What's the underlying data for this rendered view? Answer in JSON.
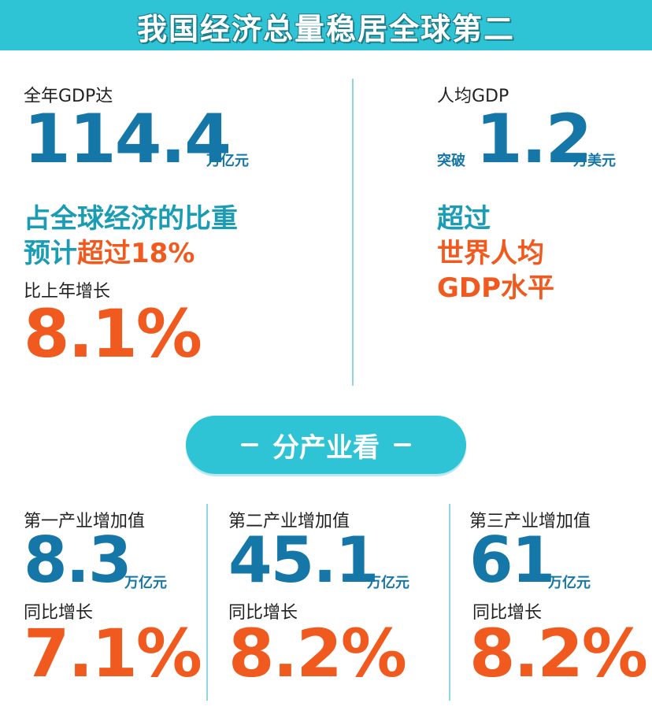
{
  "banner": {
    "title": "我国经济总量稳居全球第二"
  },
  "gdp": {
    "label": "全年GDP达",
    "value": "114.4",
    "unit": "万亿元",
    "share_line1": "占全球经济的比重",
    "share_prefix": "预计",
    "share_highlight": "超过18%",
    "growth_label": "比上年增长",
    "growth_value": "8.1%"
  },
  "per_capita": {
    "label": "人均GDP",
    "prefix": "突破",
    "value": "1.2",
    "unit": "万美元",
    "exceed_label": "超过",
    "exceed_line1": "世界人均",
    "exceed_line2": "GDP水平"
  },
  "section": {
    "title": "分产业看"
  },
  "industries": [
    {
      "label": "第一产业增加值",
      "value": "8.3",
      "unit": "万亿元",
      "growth_label": "同比增长",
      "growth": "7.1%"
    },
    {
      "label": "第二产业增加值",
      "value": "45.1",
      "unit": "万亿元",
      "growth_label": "同比增长",
      "growth": "8.2%"
    },
    {
      "label": "第三产业增加值",
      "value": "61",
      "unit": "万亿元",
      "growth_label": "同比增长",
      "growth": "8.2%"
    }
  ],
  "colors": {
    "accent_blue": "#1577a8",
    "accent_orange": "#f05a1e",
    "banner": "#2ec4d6"
  }
}
